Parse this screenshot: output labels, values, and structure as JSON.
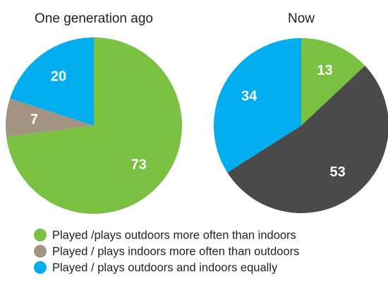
{
  "chart_data": [
    {
      "type": "pie",
      "title": "One generation ago",
      "values": [
        73,
        7,
        20
      ],
      "colors": [
        "#7ac142",
        "#a39382",
        "#00aeef"
      ]
    },
    {
      "type": "pie",
      "title": "Now",
      "values": [
        13,
        53,
        34
      ],
      "colors": [
        "#7ac142",
        "#4a4a4a",
        "#00aeef"
      ]
    }
  ],
  "legend": {
    "labels": [
      "Played /plays outdoors more often than indoors",
      "Played / plays indoors more often than outdoors",
      "Played / plays outdoors and indoors equally"
    ],
    "colors": [
      "#7ac142",
      "#a39382",
      "#00aeef"
    ]
  }
}
